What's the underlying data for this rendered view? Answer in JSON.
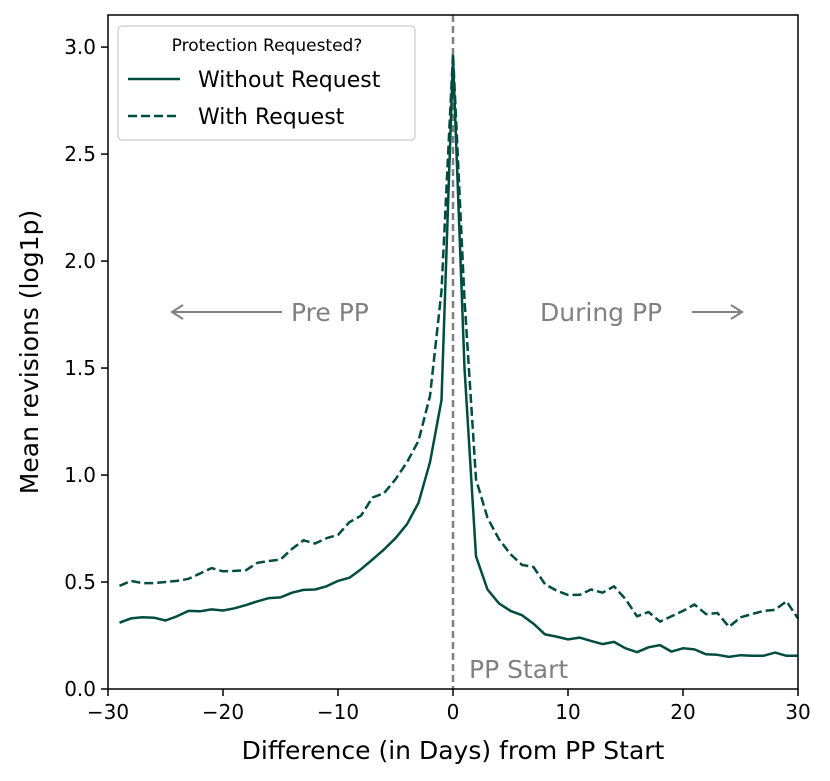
{
  "chart_data": {
    "type": "line",
    "xlabel": "Difference (in Days) from PP Start",
    "ylabel": "Mean revisions (log1p)",
    "xlim": [
      -30,
      30
    ],
    "ylim": [
      0,
      3.15
    ],
    "xticks": [
      -30,
      -20,
      -10,
      0,
      10,
      20,
      30
    ],
    "xtick_labels": [
      "−30",
      "−20",
      "−10",
      "0",
      "10",
      "20",
      "30"
    ],
    "yticks": [
      0,
      0.5,
      1.0,
      1.5,
      2.0,
      2.5,
      3.0
    ],
    "ytick_labels": [
      "0.0",
      "0.5",
      "1.0",
      "1.5",
      "2.0",
      "2.5",
      "3.0"
    ],
    "legend": {
      "title": "Protection Requested?",
      "location": "top-left"
    },
    "line_color": "#004d40",
    "annotation_color": "#808080",
    "annotations": {
      "pre": "Pre PP",
      "during": "During PP",
      "start": "PP Start"
    },
    "vline_x": 0,
    "x": [
      -29,
      -28,
      -27,
      -26,
      -25,
      -24,
      -23,
      -22,
      -21,
      -20,
      -19,
      -18,
      -17,
      -16,
      -15,
      -14,
      -13,
      -12,
      -11,
      -10,
      -9,
      -8,
      -7,
      -6,
      -5,
      -4,
      -3,
      -2,
      -1,
      0,
      1,
      2,
      3,
      4,
      5,
      6,
      7,
      8,
      9,
      10,
      11,
      12,
      13,
      14,
      15,
      16,
      17,
      18,
      19,
      20,
      21,
      22,
      23,
      24,
      25,
      26,
      27,
      28,
      29,
      30
    ],
    "series": [
      {
        "name": "Without Request",
        "style": "solid",
        "values": [
          0.31,
          0.33,
          0.335,
          0.333,
          0.32,
          0.34,
          0.365,
          0.363,
          0.372,
          0.367,
          0.377,
          0.392,
          0.41,
          0.425,
          0.428,
          0.45,
          0.463,
          0.465,
          0.48,
          0.505,
          0.52,
          0.56,
          0.605,
          0.652,
          0.705,
          0.77,
          0.87,
          1.06,
          1.35,
          2.95,
          1.5,
          0.62,
          0.465,
          0.4,
          0.365,
          0.345,
          0.305,
          0.255,
          0.245,
          0.232,
          0.24,
          0.225,
          0.21,
          0.22,
          0.19,
          0.172,
          0.195,
          0.205,
          0.175,
          0.19,
          0.185,
          0.162,
          0.16,
          0.15,
          0.158,
          0.155,
          0.155,
          0.17,
          0.155,
          0.155
        ]
      },
      {
        "name": "With Request",
        "style": "dashed",
        "values": [
          0.482,
          0.505,
          0.495,
          0.495,
          0.5,
          0.505,
          0.515,
          0.54,
          0.565,
          0.55,
          0.552,
          0.555,
          0.59,
          0.598,
          0.605,
          0.655,
          0.695,
          0.68,
          0.705,
          0.72,
          0.78,
          0.81,
          0.895,
          0.915,
          0.98,
          1.06,
          1.16,
          1.37,
          1.86,
          2.97,
          1.82,
          0.98,
          0.8,
          0.7,
          0.63,
          0.58,
          0.57,
          0.49,
          0.46,
          0.44,
          0.44,
          0.465,
          0.45,
          0.48,
          0.42,
          0.34,
          0.36,
          0.315,
          0.34,
          0.365,
          0.395,
          0.35,
          0.355,
          0.29,
          0.335,
          0.35,
          0.365,
          0.37,
          0.41,
          0.33
        ]
      }
    ]
  }
}
